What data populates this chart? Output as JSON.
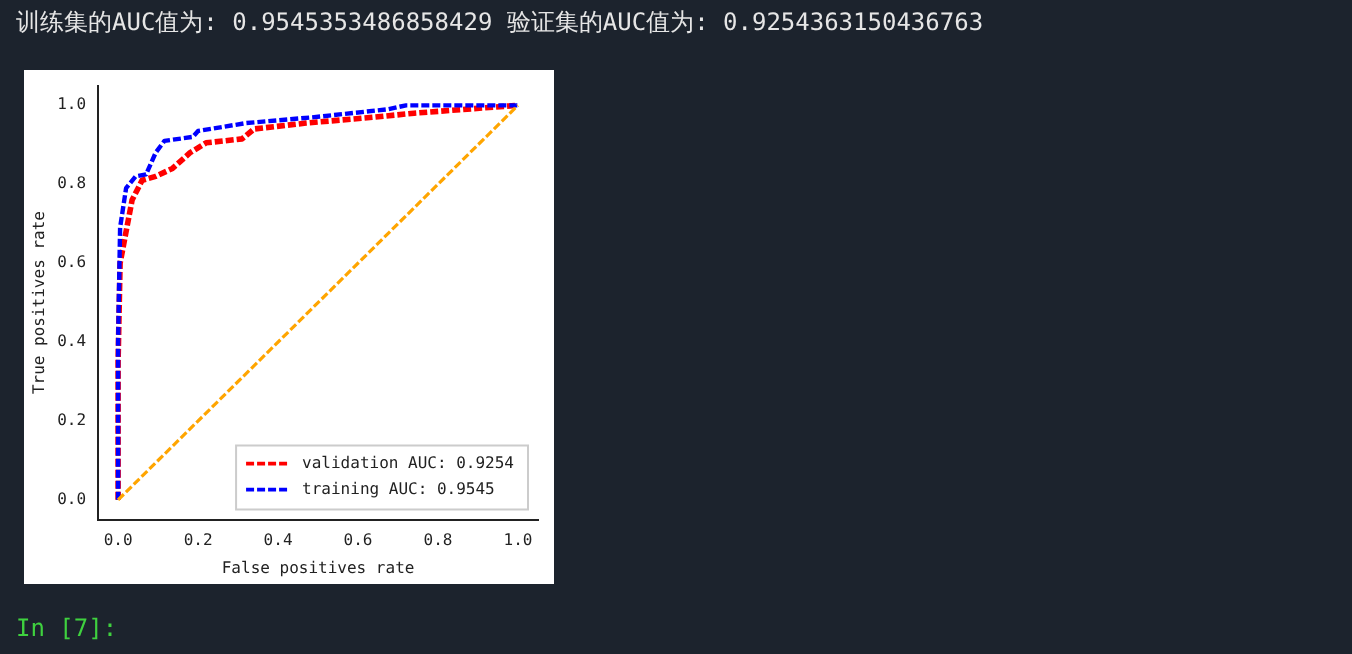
{
  "chart_data": {
    "type": "line",
    "xlabel": "False positives rate",
    "ylabel": "True positives rate",
    "annotations": [
      "训练集的AUC值为:  0.9545353486858429 验证集的AUC值为:  0.9254363150436763",
      "In [7]:"
    ],
    "series": [
      {
        "name": "validation AUC: 0.9254",
        "color": "#ff0000",
        "x": [
          0,
          0,
          0.005,
          0.02,
          0.035,
          0.06,
          0.094,
          0.136,
          0.18,
          0.22,
          0.31,
          0.34,
          0.47,
          0.64,
          0.74,
          1
        ],
        "values": [
          0,
          0.35,
          0.6,
          0.68,
          0.76,
          0.81,
          0.82,
          0.84,
          0.88,
          0.905,
          0.915,
          0.94,
          0.955,
          0.97,
          0.98,
          1
        ]
      },
      {
        "name": "training AUC: 0.9545",
        "color": "#0000ff",
        "x": [
          0,
          0,
          0.005,
          0.02,
          0.044,
          0.07,
          0.094,
          0.116,
          0.187,
          0.2,
          0.32,
          0.49,
          0.675,
          0.72,
          1
        ],
        "values": [
          0,
          0.4,
          0.69,
          0.79,
          0.82,
          0.825,
          0.88,
          0.91,
          0.92,
          0.935,
          0.955,
          0.97,
          0.99,
          1,
          1
        ]
      },
      {
        "color": "#ffa500",
        "x": [
          0,
          1
        ],
        "values": [
          0,
          1
        ]
      }
    ],
    "xlim": [
      -0.05,
      1.05
    ],
    "ylim": [
      -0.05,
      1.05
    ],
    "xticks": [
      {
        "value": 0,
        "label": "0.0"
      },
      0.2,
      0.4,
      0.6,
      0.8,
      {
        "value": 1,
        "label": "1.0"
      }
    ],
    "yticks": [
      {
        "value": 0,
        "label": "0.0"
      },
      0.2,
      0.4,
      0.6,
      0.8,
      {
        "value": 1,
        "label": "1.0"
      }
    ],
    "legend": "bottom right",
    "marker": "none",
    "line_style": "dashed",
    "grid": false
  }
}
